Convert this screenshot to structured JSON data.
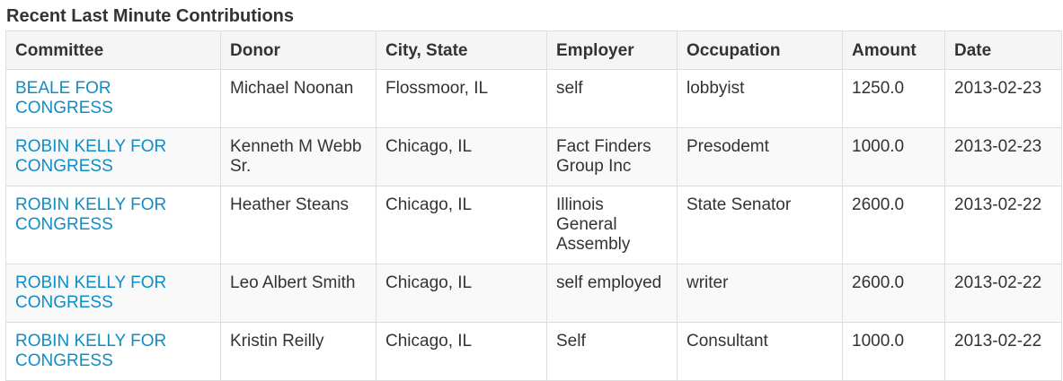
{
  "section": {
    "title": "Recent Last Minute Contributions"
  },
  "table": {
    "headers": {
      "committee": "Committee",
      "donor": "Donor",
      "city_state": "City, State",
      "employer": "Employer",
      "occupation": "Occupation",
      "amount": "Amount",
      "date": "Date"
    },
    "rows": [
      {
        "committee": "BEALE FOR CONGRESS",
        "donor": "Michael Noonan",
        "city_state": "Flossmoor, IL",
        "employer": "self",
        "occupation": "lobbyist",
        "amount": "1250.0",
        "date": "2013-02-23"
      },
      {
        "committee": "ROBIN KELLY FOR CONGRESS",
        "donor": "Kenneth M Webb Sr.",
        "city_state": "Chicago, IL",
        "employer": "Fact Finders Group Inc",
        "occupation": "Presodemt",
        "amount": "1000.0",
        "date": "2013-02-23"
      },
      {
        "committee": "ROBIN KELLY FOR CONGRESS",
        "donor": "Heather Steans",
        "city_state": "Chicago, IL",
        "employer": "Illinois General Assembly",
        "occupation": "State Senator",
        "amount": "2600.0",
        "date": "2013-02-22"
      },
      {
        "committee": "ROBIN KELLY FOR CONGRESS",
        "donor": "Leo Albert Smith",
        "city_state": "Chicago, IL",
        "employer": "self employed",
        "occupation": "writer",
        "amount": "2600.0",
        "date": "2013-02-22"
      },
      {
        "committee": "ROBIN KELLY FOR CONGRESS",
        "donor": "Kristin Reilly",
        "city_state": "Chicago, IL",
        "employer": "Self",
        "occupation": "Consultant",
        "amount": "1000.0",
        "date": "2013-02-22"
      }
    ]
  },
  "colors": {
    "link": "#0e8ec7",
    "text": "#333333",
    "border": "#dddddd",
    "header_bg": "#f5f5f5",
    "stripe_bg": "#f9f9f9"
  }
}
